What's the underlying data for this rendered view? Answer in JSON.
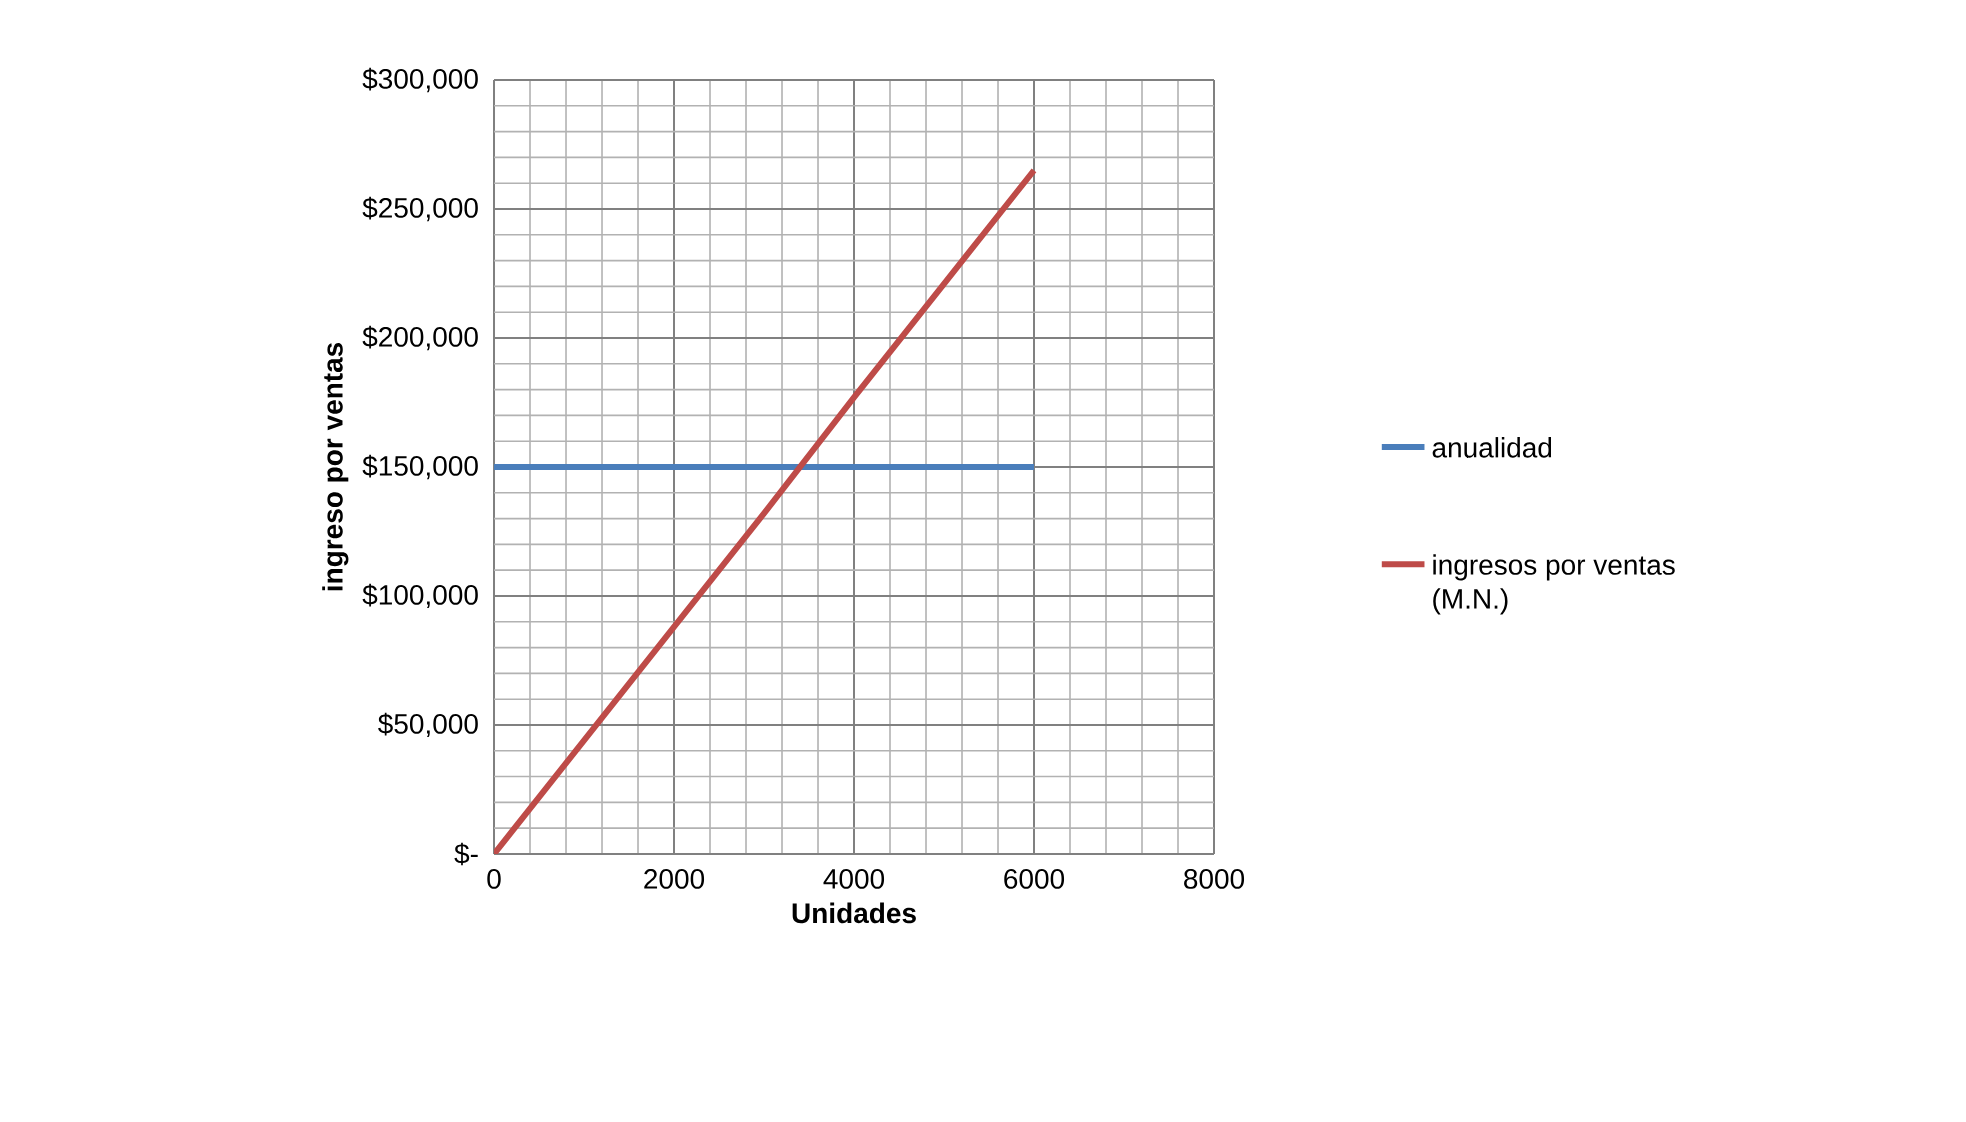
{
  "chart_data": {
    "type": "line",
    "xlabel": "Unidades",
    "ylabel": "ingreso por ventas",
    "xlim": [
      0,
      8000
    ],
    "ylim": [
      0,
      300000
    ],
    "xticks": [
      0,
      2000,
      4000,
      6000,
      8000
    ],
    "yticks": [
      {
        "value": 0,
        "label": "$-"
      },
      {
        "value": 50000,
        "label": "$50,000"
      },
      {
        "value": 100000,
        "label": "$100,000"
      },
      {
        "value": 150000,
        "label": "$150,000"
      },
      {
        "value": 200000,
        "label": "$200,000"
      },
      {
        "value": 250000,
        "label": "$250,000"
      },
      {
        "value": 300000,
        "label": "$300,000"
      }
    ],
    "grid": true,
    "legend": "right",
    "marker": "none",
    "line_style": "solid",
    "series": [
      {
        "name": "anualidad",
        "color": "#4a7ebb",
        "x": [
          0,
          6000
        ],
        "values": [
          150000,
          150000
        ]
      },
      {
        "name": "ingresos por ventas (M.N.)",
        "color": "#be4b48",
        "x": [
          0,
          1000,
          2000,
          3000,
          4000,
          5000,
          6000
        ],
        "values": [
          0,
          44000,
          88000,
          132000,
          177000,
          221000,
          265000
        ]
      }
    ]
  }
}
